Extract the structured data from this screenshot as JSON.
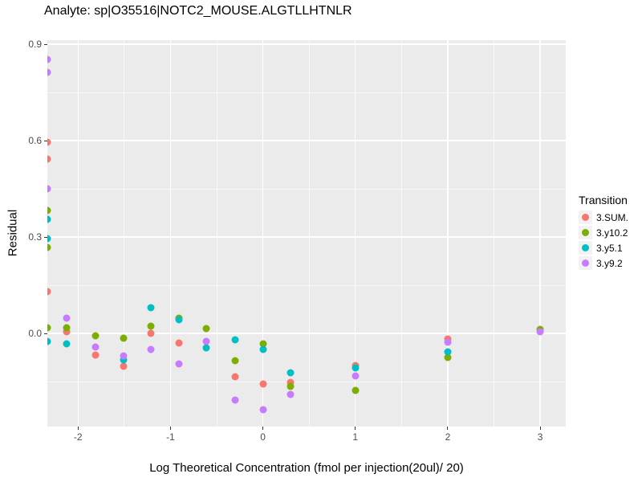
{
  "chart_data": {
    "type": "scatter",
    "title": "Analyte: sp|O35516|NOTC2_MOUSE.ALGTLLHTNLR",
    "xlabel": "Log Theoretical Concentration (fmol per injection(20ul)/ 20)",
    "ylabel": "Residual",
    "legend_title": "Transition",
    "legend_position": "right",
    "panel_bg": "#EBEBEB",
    "grid_color": "#FFFFFF",
    "axis_text_color": "#4D4D4D",
    "xlim": [
      -2.332,
      3.277
    ],
    "ylim": [
      -0.29,
      0.9125
    ],
    "xticks": {
      "values": [
        -2,
        -1,
        0,
        1,
        2,
        3
      ],
      "labels": [
        "-2",
        "-1",
        "0",
        "1",
        "2",
        "3"
      ]
    },
    "yticks": {
      "values": [
        0.0,
        0.3,
        0.6,
        0.9
      ],
      "labels": [
        "0.0",
        "0.3",
        "0.6",
        "0.9"
      ]
    },
    "x_minor": [
      -1.5,
      -0.5,
      0.5,
      1.5,
      2.5
    ],
    "y_minor": [
      -0.15,
      0.15,
      0.45,
      0.75
    ],
    "series": [
      {
        "name": "3.SUM.",
        "color": "#F8766D",
        "points": [
          [
            -2.332,
            0.594
          ],
          [
            -2.332,
            0.542
          ],
          [
            -2.332,
            0.129
          ],
          [
            -2.12,
            0.004
          ],
          [
            -1.81,
            -0.068
          ],
          [
            -1.51,
            -0.103
          ],
          [
            -1.21,
            0.0
          ],
          [
            -0.91,
            -0.029
          ],
          [
            -0.3,
            -0.135
          ],
          [
            0,
            -0.158
          ],
          [
            0.3,
            -0.153
          ],
          [
            1,
            -0.1
          ],
          [
            2,
            -0.018
          ]
        ]
      },
      {
        "name": "3.y10.2",
        "color": "#7CAE00",
        "points": [
          [
            -2.332,
            0.383
          ],
          [
            -2.332,
            0.267
          ],
          [
            -2.332,
            0.017
          ],
          [
            -2.12,
            0.017
          ],
          [
            -1.81,
            -0.008
          ],
          [
            -1.51,
            -0.014
          ],
          [
            -1.21,
            0.023
          ],
          [
            -0.91,
            0.048
          ],
          [
            -0.61,
            0.015
          ],
          [
            -0.3,
            -0.085
          ],
          [
            0,
            -0.032
          ],
          [
            0.3,
            -0.164
          ],
          [
            1,
            -0.177
          ],
          [
            2,
            -0.075
          ],
          [
            3,
            0.013
          ]
        ]
      },
      {
        "name": "3.y5.1",
        "color": "#00BFC4",
        "points": [
          [
            -2.332,
            0.354
          ],
          [
            -2.332,
            0.296
          ],
          [
            -2.332,
            -0.025
          ],
          [
            -2.12,
            -0.032
          ],
          [
            -1.51,
            -0.082
          ],
          [
            -1.21,
            0.079
          ],
          [
            -0.91,
            0.042
          ],
          [
            -0.61,
            -0.046
          ],
          [
            -0.3,
            -0.021
          ],
          [
            0,
            -0.05
          ],
          [
            0.3,
            -0.123
          ],
          [
            1,
            -0.108
          ],
          [
            2,
            -0.058
          ]
        ]
      },
      {
        "name": "3.y9.2",
        "color": "#C77CFF",
        "points": [
          [
            -2.332,
            0.852
          ],
          [
            -2.332,
            0.813
          ],
          [
            -2.332,
            0.45
          ],
          [
            -2.12,
            0.048
          ],
          [
            -1.81,
            -0.042
          ],
          [
            -1.51,
            -0.071
          ],
          [
            -1.21,
            -0.05
          ],
          [
            -0.91,
            -0.094
          ],
          [
            -0.61,
            -0.025
          ],
          [
            -0.3,
            -0.208
          ],
          [
            0,
            -0.238
          ],
          [
            0.3,
            -0.189
          ],
          [
            1,
            -0.133
          ],
          [
            2,
            -0.028
          ],
          [
            3,
            0.004
          ]
        ]
      }
    ]
  }
}
